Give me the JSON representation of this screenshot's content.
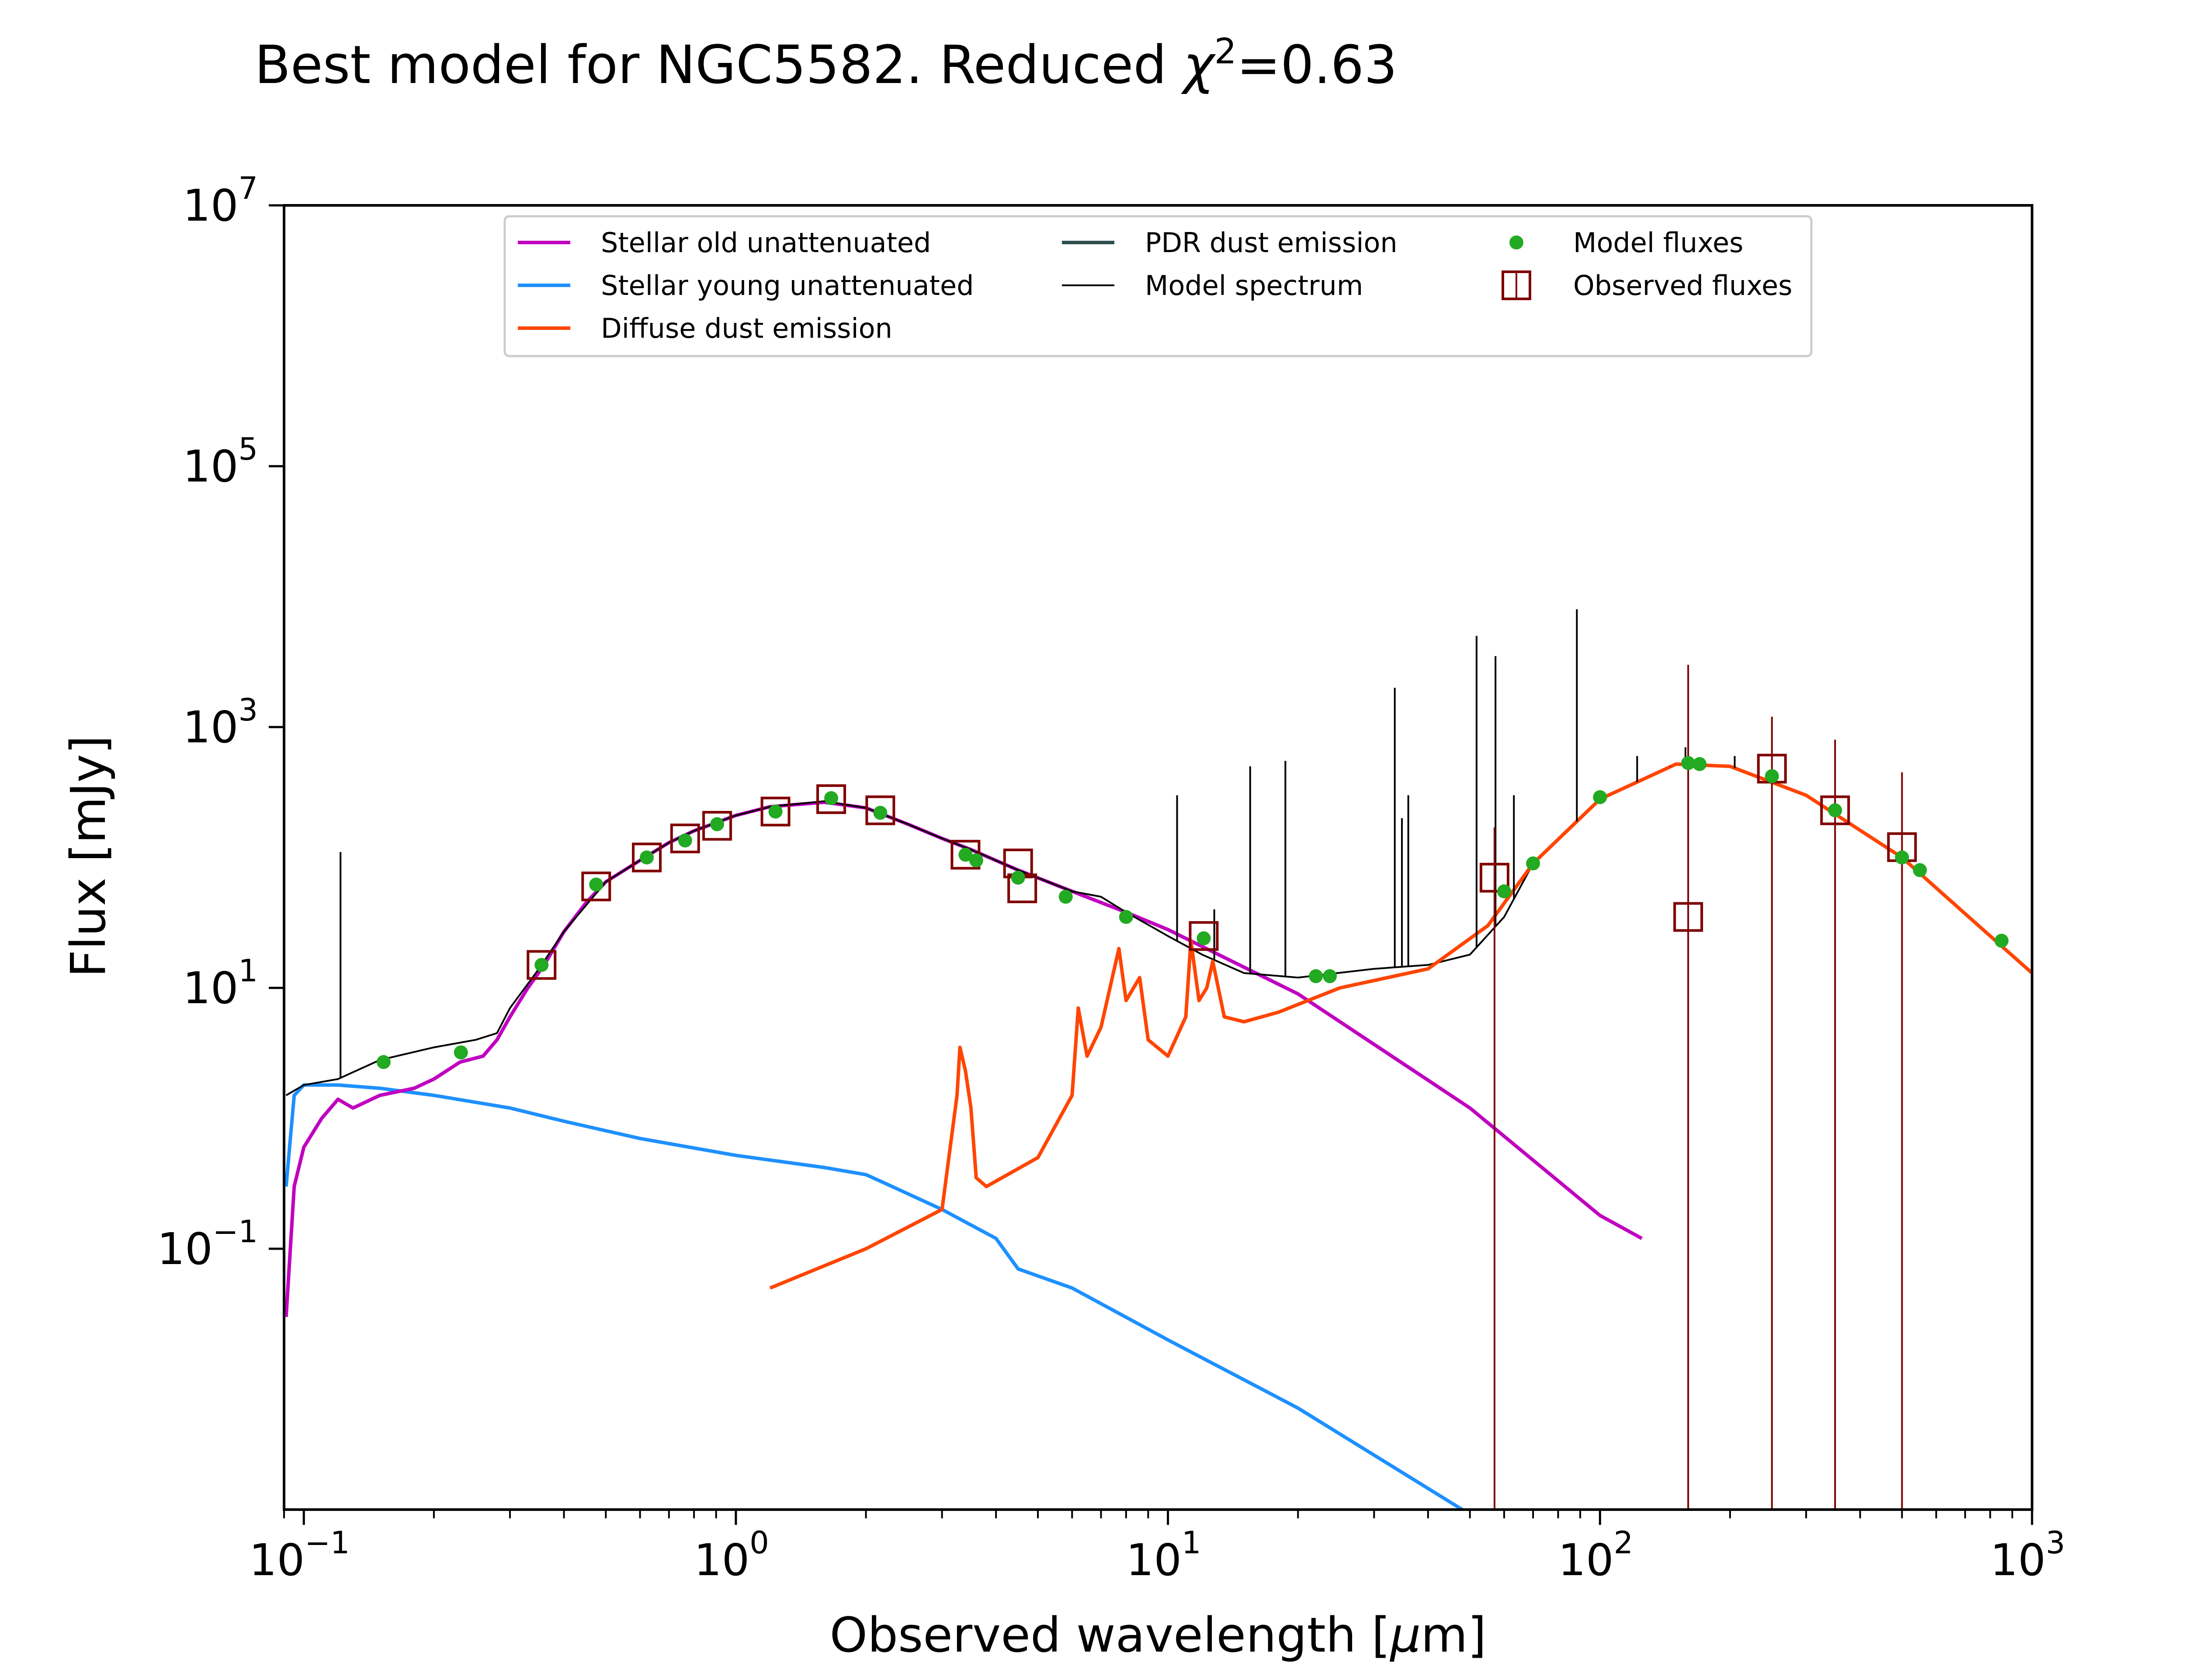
{
  "chart_data": {
    "type": "line",
    "title": "Best model for NGC5582. Reduced χ²=0.63",
    "title_parts": {
      "main": "Best model for NGC5582. Reduced ",
      "chi": "χ",
      "sup": "2",
      "rest": "=0.63"
    },
    "xlabel": "Observed wavelength [μm]",
    "xlabel_parts": {
      "pre": "Observed wavelength [",
      "mu": "μ",
      "post": "m]"
    },
    "ylabel": "Flux [mJy]",
    "xscale": "log",
    "yscale": "log",
    "xlim": [
      0.09,
      1000
    ],
    "ylim": [
      0.001,
      10000000
    ],
    "x_ticks": [
      {
        "value": 0.1,
        "base": "10",
        "exp": "−1"
      },
      {
        "value": 1,
        "base": "10",
        "exp": "0"
      },
      {
        "value": 10,
        "base": "10",
        "exp": "1"
      },
      {
        "value": 100,
        "base": "10",
        "exp": "2"
      },
      {
        "value": 1000,
        "base": "10",
        "exp": "3"
      }
    ],
    "y_ticks": [
      {
        "value": 0.1,
        "base": "10",
        "exp": "−1"
      },
      {
        "value": 10,
        "base": "10",
        "exp": "1"
      },
      {
        "value": 1000,
        "base": "10",
        "exp": "3"
      },
      {
        "value": 100000,
        "base": "10",
        "exp": "5"
      },
      {
        "value": 10000000,
        "base": "10",
        "exp": "7"
      }
    ],
    "grid": false,
    "legend_placement": "top-center",
    "legend": [
      {
        "label": "Stellar old unattenuated",
        "color": "#c000c0",
        "kind": "line"
      },
      {
        "label": "Stellar young unattenuated",
        "color": "#1e90ff",
        "kind": "line"
      },
      {
        "label": "Diffuse dust emission",
        "color": "#ff4500",
        "kind": "line"
      },
      {
        "label": "PDR dust emission",
        "color": "#2f4f4f",
        "kind": "line"
      },
      {
        "label": "Model spectrum",
        "color": "#000000",
        "kind": "thinline"
      },
      {
        "label": "Model fluxes",
        "color": "#22aa22",
        "kind": "dot"
      },
      {
        "label": "Observed fluxes",
        "color": "#800000",
        "kind": "square"
      }
    ],
    "series": [
      {
        "name": "Stellar old unattenuated",
        "color": "#c000c0",
        "points": [
          [
            0.091,
            0.03
          ],
          [
            0.095,
            0.3
          ],
          [
            0.1,
            0.6
          ],
          [
            0.11,
            1.0
          ],
          [
            0.12,
            1.4
          ],
          [
            0.13,
            1.2
          ],
          [
            0.15,
            1.5
          ],
          [
            0.18,
            1.7
          ],
          [
            0.2,
            2.0
          ],
          [
            0.23,
            2.7
          ],
          [
            0.26,
            3.0
          ],
          [
            0.28,
            4.0
          ],
          [
            0.3,
            6.0
          ],
          [
            0.33,
            10.0
          ],
          [
            0.36,
            15.0
          ],
          [
            0.4,
            27.0
          ],
          [
            0.45,
            45.0
          ],
          [
            0.5,
            65.0
          ],
          [
            0.6,
            95.0
          ],
          [
            0.7,
            130.0
          ],
          [
            0.8,
            160.0
          ],
          [
            1.0,
            210.0
          ],
          [
            1.2,
            245.0
          ],
          [
            1.6,
            265.0
          ],
          [
            2.0,
            240.0
          ],
          [
            2.5,
            180.0
          ],
          [
            3.0,
            140.0
          ],
          [
            3.5,
            115.0
          ],
          [
            4.5,
            80.0
          ],
          [
            6.0,
            55.0
          ],
          [
            8.0,
            38.0
          ],
          [
            10.0,
            28.0
          ],
          [
            20.0,
            9.0
          ],
          [
            50.0,
            1.2
          ],
          [
            100.0,
            0.18
          ],
          [
            125.0,
            0.12
          ]
        ]
      },
      {
        "name": "Stellar young unattenuated",
        "color": "#1e90ff",
        "points": [
          [
            0.091,
            0.3
          ],
          [
            0.095,
            1.5
          ],
          [
            0.1,
            1.8
          ],
          [
            0.12,
            1.8
          ],
          [
            0.15,
            1.7
          ],
          [
            0.2,
            1.5
          ],
          [
            0.3,
            1.2
          ],
          [
            0.4,
            0.95
          ],
          [
            0.6,
            0.7
          ],
          [
            1.0,
            0.52
          ],
          [
            1.6,
            0.42
          ],
          [
            2.0,
            0.37
          ],
          [
            2.3,
            0.3
          ],
          [
            3.0,
            0.2
          ],
          [
            4.0,
            0.12
          ],
          [
            4.5,
            0.07
          ],
          [
            6.0,
            0.05
          ],
          [
            10.0,
            0.02
          ],
          [
            20.0,
            0.006
          ],
          [
            48.0,
            0.001
          ]
        ]
      },
      {
        "name": "Diffuse dust emission",
        "color": "#ff4500",
        "points": [
          [
            1.2,
            0.05
          ],
          [
            2.0,
            0.1
          ],
          [
            3.0,
            0.2
          ],
          [
            3.25,
            1.5
          ],
          [
            3.3,
            3.5
          ],
          [
            3.4,
            2.3
          ],
          [
            3.5,
            1.2
          ],
          [
            3.6,
            0.35
          ],
          [
            3.8,
            0.3
          ],
          [
            5.0,
            0.5
          ],
          [
            6.0,
            1.5
          ],
          [
            6.2,
            7.0
          ],
          [
            6.5,
            3.0
          ],
          [
            7.0,
            5.0
          ],
          [
            7.7,
            20.0
          ],
          [
            8.0,
            8.0
          ],
          [
            8.6,
            12.0
          ],
          [
            9.0,
            4.0
          ],
          [
            10.0,
            3.0
          ],
          [
            11.0,
            6.0
          ],
          [
            11.3,
            23.0
          ],
          [
            11.8,
            8.0
          ],
          [
            12.3,
            10.0
          ],
          [
            12.7,
            16.0
          ],
          [
            13.5,
            6.0
          ],
          [
            15.0,
            5.5
          ],
          [
            18.0,
            6.5
          ],
          [
            25.0,
            10.0
          ],
          [
            40.0,
            14.0
          ],
          [
            55.0,
            30.0
          ],
          [
            70.0,
            90.0
          ],
          [
            100.0,
            280.0
          ],
          [
            150.0,
            520.0
          ],
          [
            200.0,
            500.0
          ],
          [
            300.0,
            300.0
          ],
          [
            500.0,
            100.0
          ],
          [
            800.0,
            25.0
          ],
          [
            1000.0,
            13.0
          ]
        ]
      },
      {
        "name": "Model spectrum",
        "color": "#000000",
        "points": [
          [
            0.091,
            1.5
          ],
          [
            0.1,
            1.8
          ],
          [
            0.12,
            2.0
          ],
          [
            0.15,
            2.8
          ],
          [
            0.2,
            3.5
          ],
          [
            0.25,
            4.0
          ],
          [
            0.28,
            4.5
          ],
          [
            0.3,
            7.0
          ],
          [
            0.35,
            14.0
          ],
          [
            0.4,
            27.0
          ],
          [
            0.5,
            65.0
          ],
          [
            0.6,
            95.0
          ],
          [
            0.7,
            130.0
          ],
          [
            0.8,
            160.0
          ],
          [
            1.0,
            210.0
          ],
          [
            1.2,
            245.0
          ],
          [
            1.6,
            270.0
          ],
          [
            2.0,
            240.0
          ],
          [
            2.5,
            180.0
          ],
          [
            3.0,
            140.0
          ],
          [
            3.5,
            115.0
          ],
          [
            4.5,
            80.0
          ],
          [
            6.0,
            55.0
          ],
          [
            7.0,
            50.0
          ],
          [
            8.0,
            38.0
          ],
          [
            10.0,
            25.0
          ],
          [
            12.0,
            18.0
          ],
          [
            15.0,
            13.0
          ],
          [
            20.0,
            12.0
          ],
          [
            30.0,
            14.0
          ],
          [
            40.0,
            15.0
          ],
          [
            50.0,
            18.0
          ],
          [
            60.0,
            35.0
          ],
          [
            70.0,
            90.0
          ],
          [
            100.0,
            280.0
          ],
          [
            150.0,
            520.0
          ],
          [
            200.0,
            500.0
          ],
          [
            300.0,
            300.0
          ],
          [
            500.0,
            100.0
          ],
          [
            800.0,
            25.0
          ],
          [
            1000.0,
            13.0
          ]
        ]
      }
    ],
    "emission_lines": [
      [
        0.1216,
        110.0
      ],
      [
        10.5,
        300.0
      ],
      [
        12.8,
        40.0
      ],
      [
        15.5,
        500.0
      ],
      [
        18.7,
        550.0
      ],
      [
        33.5,
        2000.0
      ],
      [
        34.8,
        200.0
      ],
      [
        36.0,
        300.0
      ],
      [
        51.8,
        5000.0
      ],
      [
        57.3,
        3500.0
      ],
      [
        63.2,
        300.0
      ],
      [
        88.4,
        8000.0
      ],
      [
        121.9,
        600.0
      ],
      [
        145.5,
        500.0
      ],
      [
        157.7,
        700.0
      ],
      [
        205.0,
        600.0
      ]
    ],
    "model_fluxes": [
      [
        0.153,
        2.7
      ],
      [
        0.231,
        3.2
      ],
      [
        0.355,
        15.0
      ],
      [
        0.475,
        62.0
      ],
      [
        0.622,
        100.0
      ],
      [
        0.763,
        135.0
      ],
      [
        0.905,
        180.0
      ],
      [
        1.235,
        225.0
      ],
      [
        1.662,
        285.0
      ],
      [
        2.159,
        220.0
      ],
      [
        3.4,
        105.0
      ],
      [
        3.6,
        95.0
      ],
      [
        4.5,
        70.0
      ],
      [
        5.8,
        50.0
      ],
      [
        8.0,
        35.0
      ],
      [
        12.1,
        24.0
      ],
      [
        22.0,
        12.3
      ],
      [
        23.7,
        12.3
      ],
      [
        60.0,
        55.0
      ],
      [
        70.0,
        90.0
      ],
      [
        100.0,
        290.0
      ],
      [
        160.0,
        530.0
      ],
      [
        170.0,
        520.0
      ],
      [
        250.0,
        420.0
      ],
      [
        350.0,
        230.0
      ],
      [
        500.0,
        100.0
      ],
      [
        550.0,
        80.0
      ],
      [
        850.0,
        23.0
      ]
    ],
    "observed_fluxes": [
      {
        "x": 0.355,
        "y": 15.0
      },
      {
        "x": 0.475,
        "y": 60.0
      },
      {
        "x": 0.622,
        "y": 100.0
      },
      {
        "x": 0.763,
        "y": 140.0
      },
      {
        "x": 0.905,
        "y": 175.0
      },
      {
        "x": 1.235,
        "y": 225.0
      },
      {
        "x": 1.662,
        "y": 280.0
      },
      {
        "x": 2.159,
        "y": 230.0
      },
      {
        "x": 3.4,
        "y": 105.0
      },
      {
        "x": 4.5,
        "y": 90.0
      },
      {
        "x": 4.6,
        "y": 58.0
      },
      {
        "x": 12.1,
        "y": 25.0
      },
      {
        "x": 57.0,
        "y": 70.0,
        "err_low": 0.001,
        "err_high": 170.0
      },
      {
        "x": 160.0,
        "y": 35.0,
        "err_low": 0.001,
        "err_high": 3000.0
      },
      {
        "x": 250.0,
        "y": 480.0,
        "err_low": 0.001,
        "err_high": 1200.0
      },
      {
        "x": 350.0,
        "y": 230.0,
        "err_low": 0.001,
        "err_high": 800.0
      },
      {
        "x": 500.0,
        "y": 120.0,
        "err_low": 0.001,
        "err_high": 450.0
      }
    ]
  }
}
